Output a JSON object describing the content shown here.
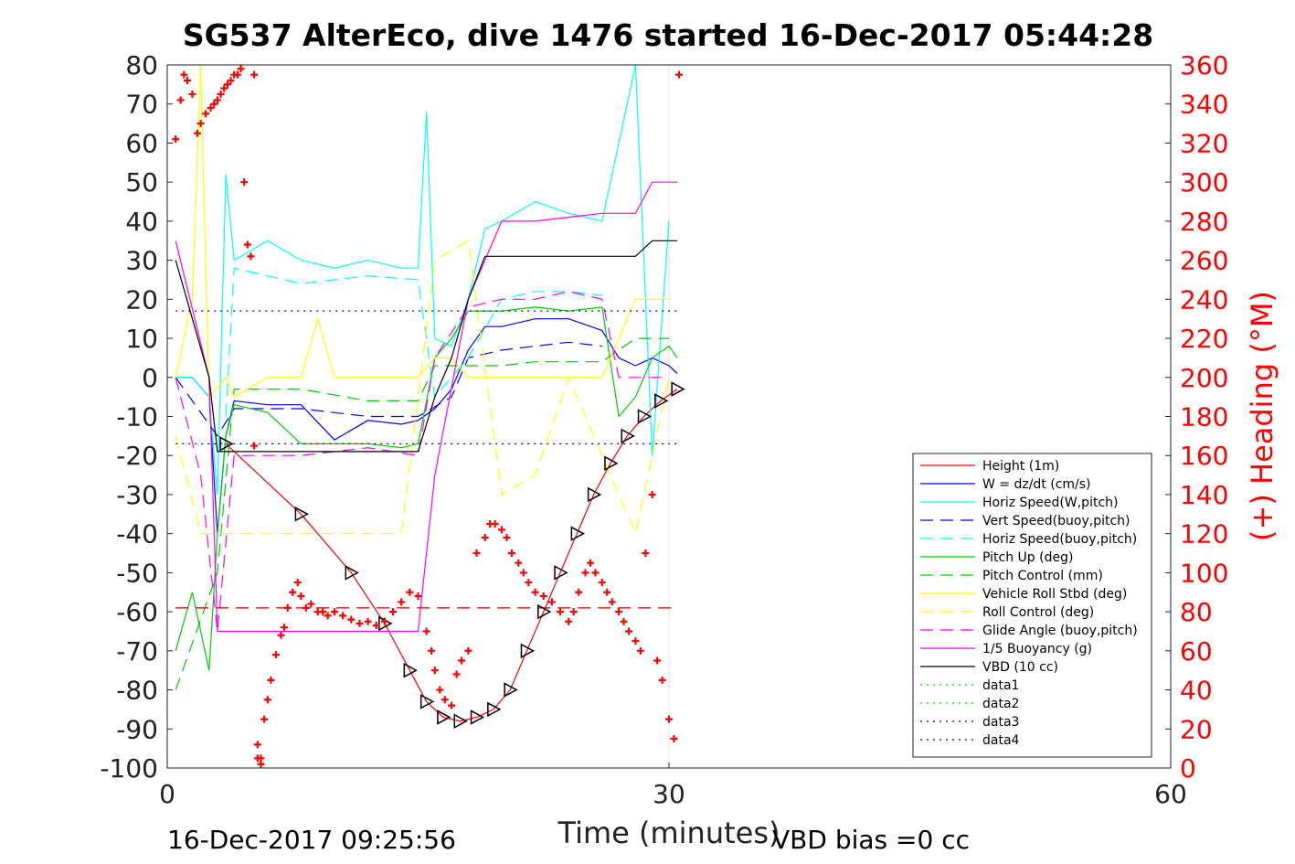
{
  "chart_data": {
    "type": "line",
    "title": "SG537 AlterEco, dive 1476 started 16-Dec-2017 05:44:28",
    "xlabel": "Time (minutes)",
    "ylabel_right": "(+) Heading (°M)",
    "xlim": [
      0,
      60
    ],
    "ylim_left": [
      -100,
      80
    ],
    "ylim_right": [
      0,
      360
    ],
    "x_ticks": [
      "0",
      "30",
      "60"
    ],
    "y_ticks_left": [
      "80",
      "70",
      "60",
      "50",
      "40",
      "30",
      "20",
      "10",
      "0",
      "-10",
      "-20",
      "-30",
      "-40",
      "-50",
      "-60",
      "-70",
      "-80",
      "-90",
      "-100"
    ],
    "y_ticks_right": [
      "360",
      "340",
      "320",
      "300",
      "280",
      "260",
      "240",
      "220",
      "200",
      "180",
      "160",
      "140",
      "120",
      "100",
      "80",
      "60",
      "40",
      "20",
      "0"
    ],
    "grid_x": [
      30
    ],
    "footer_left": "16-Dec-2017 09:25:56",
    "footer_right": "VBD bias =0 cc",
    "legend_position": "lower-right",
    "series": [
      {
        "name": "Height (1m)",
        "color": "#ff0000",
        "dash": "solid",
        "x": [
          3.5,
          8,
          11,
          13,
          14.5,
          15.5,
          16.5,
          17.5,
          18.5,
          19.5,
          20.5,
          21.5,
          22.5,
          23.5,
          24.5,
          25.5,
          26.5,
          27.5,
          28.5,
          29.5,
          30.5
        ],
        "y": [
          -17,
          -35,
          -50,
          -63,
          -75,
          -83,
          -87,
          -88,
          -87,
          -85,
          -80,
          -70,
          -60,
          -50,
          -40,
          -30,
          -22,
          -15,
          -10,
          -6,
          -3
        ]
      },
      {
        "name": "W = dz/dt (cm/s)",
        "color": "#0000ff",
        "dash": "solid",
        "x": [
          0.5,
          1.5,
          2.5,
          3,
          3.5,
          4,
          6,
          8,
          10,
          12,
          14,
          15,
          16,
          17,
          18,
          19,
          20,
          22,
          24,
          26,
          27,
          28,
          29,
          30,
          30.5
        ],
        "y": [
          0,
          0,
          -5,
          -40,
          -15,
          -6,
          -7,
          -7,
          -16,
          -11,
          -12,
          -11,
          -8,
          -3,
          7,
          13,
          13,
          15,
          15,
          12,
          5,
          3,
          5,
          3,
          1
        ]
      },
      {
        "name": "Horiz Speed(W,pitch)",
        "color": "#00ffff",
        "dash": "solid",
        "x": [
          0.5,
          1.5,
          2.5,
          3,
          3.5,
          4,
          6,
          8,
          10,
          12,
          14,
          15,
          15.5,
          16,
          17,
          18,
          19,
          20,
          22,
          24,
          26,
          27,
          28,
          29,
          30
        ],
        "y": [
          0,
          0,
          -5,
          -30,
          52,
          30,
          35,
          30,
          28,
          30,
          28,
          28,
          68,
          10,
          8,
          20,
          38,
          40,
          45,
          42,
          40,
          60,
          80,
          -20,
          40
        ]
      },
      {
        "name": "Vert Speed(buoy,pitch)",
        "color": "#0000ff",
        "dash": "long-dash",
        "x": [
          0.5,
          3,
          4,
          8,
          12,
          15,
          17,
          18,
          20,
          22,
          24,
          26
        ],
        "y": [
          0,
          -15,
          -8,
          -8,
          -10,
          -10,
          -5,
          5,
          7,
          8,
          9,
          8
        ]
      },
      {
        "name": "Horiz Speed(buoy,pitch)",
        "color": "#00ffff",
        "dash": "long-dash",
        "x": [
          3.5,
          4,
          8,
          12,
          15,
          16,
          18,
          20,
          22,
          24,
          26
        ],
        "y": [
          -10,
          28,
          24,
          26,
          25,
          -5,
          5,
          20,
          22,
          22,
          21
        ]
      },
      {
        "name": "Pitch Up (deg)",
        "color": "#00cc00",
        "dash": "solid",
        "x": [
          0.5,
          1.5,
          2.5,
          3,
          3.5,
          4,
          6,
          8,
          10,
          12,
          14,
          15,
          16,
          17,
          18,
          20,
          22,
          24,
          26,
          27,
          28,
          29,
          30,
          30.5
        ],
        "y": [
          -70,
          -55,
          -75,
          -40,
          -15,
          -7,
          -9,
          -17,
          -17,
          -17,
          -18,
          -17,
          5,
          10,
          17,
          17,
          18,
          17,
          18,
          -10,
          -5,
          5,
          8,
          5
        ]
      },
      {
        "name": "Pitch Control (mm)",
        "color": "#00cc00",
        "dash": "long-dash",
        "x": [
          0.5,
          3,
          4,
          8,
          12,
          15,
          16,
          18,
          20,
          22,
          24,
          26,
          28,
          30
        ],
        "y": [
          -80,
          -50,
          -3,
          -3,
          -6,
          -6,
          3,
          3,
          3,
          4,
          4,
          4,
          10,
          10
        ]
      },
      {
        "name": "Vehicle Roll Stbd (deg)",
        "color": "#ffff00",
        "dash": "solid",
        "x": [
          0.5,
          1.5,
          2,
          2.5,
          3.5,
          4,
          6,
          8,
          9,
          10,
          12,
          14,
          15,
          16,
          17,
          18,
          20,
          22,
          24,
          26,
          28,
          30
        ],
        "y": [
          0,
          20,
          80,
          -5,
          0,
          -5,
          0,
          0,
          15,
          0,
          0,
          0,
          0,
          5,
          5,
          0,
          0,
          0,
          0,
          0,
          20,
          20
        ]
      },
      {
        "name": "Roll Control (deg)",
        "color": "#ffff00",
        "dash": "long-dash",
        "x": [
          0.5,
          2,
          3,
          4,
          6,
          8,
          10,
          12,
          14,
          16,
          18,
          20,
          22,
          24,
          26,
          28,
          30
        ],
        "y": [
          -15,
          -40,
          -40,
          -40,
          -40,
          -40,
          -40,
          -40,
          -40,
          30,
          35,
          -30,
          -25,
          0,
          -20,
          -40,
          0
        ]
      },
      {
        "name": "Glide Angle (buoy,pitch)",
        "color": "#ff00ff",
        "dash": "long-dash",
        "x": [
          0.5,
          2,
          3,
          4,
          8,
          12,
          15,
          16,
          18,
          20,
          22,
          24,
          26,
          27,
          30
        ],
        "y": [
          0,
          -25,
          -65,
          -20,
          -20,
          -18,
          -20,
          5,
          18,
          20,
          20,
          22,
          20,
          0,
          0
        ]
      },
      {
        "name": "1/5 Buoyancy (g)",
        "color": "#ff00ff",
        "dash": "solid",
        "x": [
          0.5,
          2.5,
          3,
          8,
          12,
          15,
          16,
          18,
          20,
          22,
          24,
          26,
          28,
          29,
          30.5
        ],
        "y": [
          35,
          0,
          -65,
          -65,
          -65,
          -65,
          -25,
          20,
          40,
          40,
          41,
          42,
          42,
          50,
          50
        ]
      },
      {
        "name": "VBD (10 cc)",
        "color": "#000000",
        "dash": "solid",
        "x": [
          0.5,
          2.5,
          3,
          8,
          12,
          15,
          16,
          17,
          18,
          19,
          20,
          22,
          24,
          26,
          28,
          29,
          30.5
        ],
        "y": [
          30,
          0,
          -19,
          -19,
          -19,
          -19,
          -5,
          5,
          20,
          31,
          31,
          31,
          31,
          31,
          31,
          35,
          35
        ]
      },
      {
        "name": "data1",
        "color": "#00cc00",
        "dash": "dotted",
        "x": [],
        "y": []
      },
      {
        "name": "data2",
        "color": "#00cc00",
        "dash": "dotted",
        "x": [],
        "y": []
      },
      {
        "name": "data3",
        "color": "#0000aa",
        "dash": "dotted",
        "x": [
          0.5,
          30.5
        ],
        "y": [
          17,
          17
        ]
      },
      {
        "name": "data4",
        "color": "#0000aa",
        "dash": "dotted",
        "x": [
          0.5,
          30.5
        ],
        "y": [
          -17,
          -17
        ]
      }
    ],
    "reference_lines": [
      {
        "axis": "left",
        "y": -59,
        "color": "#cc0000",
        "dash": "long-dash",
        "x": [
          0.5,
          30.5
        ]
      }
    ],
    "heading_points": {
      "color": "#ff0000",
      "marker": "plus",
      "axis": "right",
      "x": [
        0.5,
        0.8,
        1.0,
        1.2,
        1.5,
        1.8,
        2.0,
        2.3,
        2.6,
        2.8,
        3.0,
        3.2,
        3.4,
        3.6,
        3.8,
        4.0,
        4.2,
        4.4,
        4.6,
        4.8,
        5.0,
        5.2,
        5.4,
        5.6,
        5.2,
        5.4,
        5.6,
        5.8,
        6.0,
        6.2,
        6.5,
        6.8,
        7.0,
        7.2,
        7.5,
        7.8,
        8.0,
        8.3,
        8.6,
        9.0,
        9.3,
        9.6,
        10.0,
        10.5,
        11.0,
        11.5,
        12.0,
        12.5,
        13.0,
        13.5,
        14.0,
        14.5,
        15.0,
        15.5,
        15.8,
        16.0,
        16.3,
        16.6,
        17.0,
        17.3,
        17.6,
        18.0,
        18.5,
        19.0,
        19.3,
        19.6,
        20.0,
        20.3,
        20.6,
        21.0,
        21.3,
        21.6,
        22.0,
        22.5,
        23.0,
        23.5,
        24.0,
        24.3,
        24.6,
        25.0,
        25.3,
        25.6,
        26.0,
        26.3,
        26.6,
        27.0,
        27.3,
        27.6,
        28.0,
        28.3,
        28.6,
        29.0,
        29.3,
        29.6,
        30.0,
        30.3,
        30.6
      ],
      "y": [
        322,
        342,
        355,
        352,
        345,
        325,
        330,
        335,
        338,
        340,
        342,
        345,
        348,
        350,
        352,
        355,
        355,
        358,
        300,
        268,
        262,
        165,
        12,
        5,
        355,
        5,
        2,
        25,
        35,
        45,
        58,
        68,
        72,
        82,
        90,
        95,
        88,
        82,
        84,
        80,
        80,
        78,
        80,
        78,
        76,
        74,
        75,
        73,
        75,
        80,
        85,
        90,
        88,
        70,
        60,
        50,
        40,
        35,
        32,
        48,
        55,
        60,
        110,
        118,
        125,
        125,
        122,
        118,
        110,
        105,
        100,
        95,
        90,
        88,
        85,
        80,
        75,
        80,
        90,
        100,
        105,
        100,
        95,
        90,
        85,
        80,
        75,
        70,
        65,
        60,
        110,
        140,
        55,
        45,
        25,
        15,
        355
      ]
    },
    "triangle_markers_on": "Height (1m)"
  }
}
